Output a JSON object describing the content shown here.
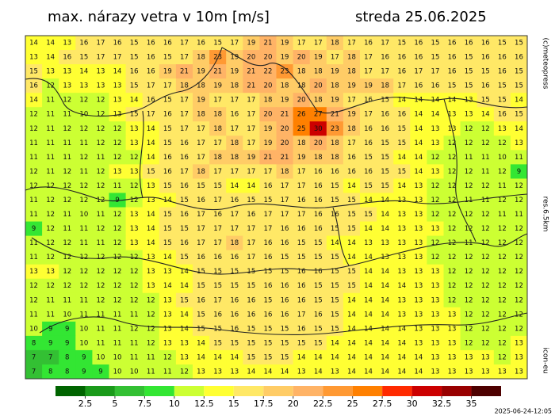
{
  "header": {
    "title": "max. nárazy vetra v 10m [m/s]",
    "date": "streda 25.06.2025"
  },
  "side_labels": {
    "copyright": "(c)meteopress",
    "resolution": "res.6.5km",
    "model": "icon-eu"
  },
  "timestamp": "2025-06-24-12:05",
  "colorbar": {
    "range": [
      0,
      37.5
    ],
    "ticks": [
      2.5,
      5,
      7.5,
      10,
      12.5,
      15,
      17.5,
      20,
      22.5,
      25,
      27.5,
      30,
      32.5,
      35
    ],
    "colors": [
      "#006400",
      "#1a9a1a",
      "#33c033",
      "#33e633",
      "#ccff33",
      "#ffff33",
      "#ffe866",
      "#ffcc66",
      "#ffb366",
      "#ff9933",
      "#ff8000",
      "#ff2a00",
      "#cc0000",
      "#990000",
      "#4d0000"
    ]
  },
  "grid": {
    "values": [
      [
        14,
        14,
        13,
        16,
        17,
        16,
        15,
        16,
        16,
        17,
        16,
        15,
        17,
        19,
        21,
        19,
        17,
        17,
        18,
        17,
        16,
        17,
        15,
        16,
        15,
        16,
        16,
        16,
        15,
        15
      ],
      [
        13,
        14,
        16,
        15,
        17,
        17,
        15,
        16,
        15,
        17,
        18,
        23,
        19,
        20,
        20,
        19,
        20,
        19,
        17,
        18,
        17,
        16,
        16,
        16,
        15,
        16,
        15,
        16,
        16,
        16
      ],
      [
        15,
        13,
        13,
        14,
        13,
        14,
        16,
        16,
        19,
        21,
        19,
        21,
        19,
        21,
        22,
        23,
        18,
        18,
        19,
        18,
        17,
        17,
        16,
        17,
        17,
        16,
        15,
        15,
        16,
        15
      ],
      [
        16,
        12,
        13,
        13,
        13,
        13,
        15,
        17,
        17,
        18,
        18,
        19,
        18,
        21,
        20,
        18,
        18,
        20,
        18,
        19,
        19,
        18,
        17,
        16,
        16,
        15,
        15,
        16,
        15,
        15
      ],
      [
        14,
        11,
        12,
        12,
        12,
        13,
        14,
        16,
        15,
        17,
        19,
        17,
        17,
        17,
        18,
        19,
        20,
        18,
        19,
        17,
        16,
        15,
        14,
        14,
        14,
        14,
        13,
        15,
        15,
        14
      ],
      [
        12,
        11,
        11,
        10,
        12,
        13,
        15,
        17,
        16,
        17,
        18,
        18,
        16,
        17,
        20,
        21,
        26,
        27,
        21,
        19,
        17,
        16,
        16,
        14,
        14,
        13,
        13,
        14,
        16,
        15
      ],
      [
        12,
        11,
        12,
        12,
        12,
        12,
        13,
        14,
        15,
        17,
        17,
        18,
        17,
        17,
        19,
        20,
        25,
        30,
        23,
        18,
        16,
        16,
        15,
        14,
        13,
        13,
        12,
        12,
        13,
        14
      ],
      [
        11,
        11,
        11,
        11,
        12,
        12,
        13,
        14,
        15,
        16,
        17,
        17,
        18,
        17,
        19,
        20,
        18,
        20,
        18,
        17,
        16,
        15,
        15,
        14,
        13,
        12,
        12,
        12,
        12,
        13
      ],
      [
        11,
        11,
        11,
        12,
        11,
        12,
        12,
        14,
        16,
        16,
        17,
        18,
        18,
        19,
        21,
        21,
        19,
        18,
        18,
        16,
        15,
        15,
        14,
        14,
        12,
        12,
        11,
        11,
        10,
        11
      ],
      [
        12,
        11,
        12,
        11,
        12,
        13,
        13,
        15,
        16,
        17,
        18,
        17,
        17,
        17,
        17,
        18,
        17,
        16,
        16,
        16,
        16,
        15,
        15,
        14,
        13,
        12,
        12,
        11,
        12,
        9
      ],
      [
        12,
        12,
        12,
        12,
        12,
        11,
        12,
        13,
        15,
        16,
        15,
        15,
        14,
        14,
        16,
        17,
        17,
        16,
        15,
        14,
        15,
        15,
        14,
        13,
        12,
        12,
        12,
        12,
        11,
        12
      ],
      [
        11,
        12,
        12,
        12,
        12,
        9,
        12,
        13,
        14,
        15,
        16,
        17,
        16,
        15,
        15,
        17,
        16,
        16,
        15,
        15,
        14,
        14,
        13,
        13,
        12,
        12,
        11,
        11,
        12,
        12
      ],
      [
        11,
        12,
        11,
        10,
        11,
        12,
        13,
        14,
        15,
        16,
        17,
        16,
        17,
        16,
        17,
        17,
        17,
        16,
        16,
        15,
        15,
        14,
        13,
        13,
        12,
        12,
        12,
        12,
        11,
        11
      ],
      [
        9,
        12,
        11,
        11,
        12,
        12,
        13,
        14,
        15,
        15,
        17,
        17,
        17,
        17,
        17,
        16,
        16,
        16,
        15,
        15,
        14,
        14,
        13,
        13,
        13,
        12,
        12,
        12,
        12,
        12
      ],
      [
        11,
        12,
        12,
        11,
        11,
        12,
        13,
        14,
        15,
        16,
        17,
        17,
        18,
        17,
        16,
        16,
        15,
        15,
        14,
        14,
        13,
        13,
        13,
        13,
        12,
        12,
        11,
        12,
        12,
        12
      ],
      [
        11,
        12,
        12,
        12,
        12,
        12,
        12,
        13,
        14,
        15,
        16,
        16,
        16,
        17,
        16,
        15,
        15,
        15,
        15,
        14,
        14,
        13,
        13,
        13,
        12,
        12,
        12,
        12,
        12,
        12
      ],
      [
        13,
        13,
        12,
        12,
        12,
        12,
        12,
        13,
        13,
        14,
        15,
        15,
        15,
        15,
        15,
        15,
        16,
        16,
        15,
        15,
        14,
        14,
        13,
        13,
        13,
        12,
        12,
        12,
        12,
        12
      ],
      [
        12,
        12,
        12,
        12,
        12,
        12,
        12,
        13,
        14,
        14,
        15,
        15,
        15,
        15,
        16,
        16,
        16,
        15,
        15,
        15,
        14,
        14,
        14,
        13,
        13,
        12,
        12,
        12,
        12,
        12
      ],
      [
        12,
        11,
        11,
        11,
        12,
        12,
        12,
        12,
        13,
        15,
        16,
        17,
        16,
        16,
        15,
        16,
        16,
        15,
        15,
        14,
        14,
        14,
        13,
        13,
        13,
        12,
        12,
        12,
        12,
        12
      ],
      [
        11,
        11,
        10,
        11,
        11,
        11,
        11,
        12,
        13,
        14,
        15,
        16,
        16,
        16,
        16,
        16,
        17,
        16,
        15,
        14,
        14,
        14,
        13,
        13,
        13,
        13,
        12,
        12,
        12,
        12
      ],
      [
        10,
        9,
        9,
        10,
        11,
        11,
        12,
        12,
        13,
        14,
        15,
        15,
        16,
        15,
        15,
        15,
        16,
        15,
        15,
        14,
        14,
        14,
        14,
        13,
        13,
        13,
        12,
        12,
        12,
        12
      ],
      [
        8,
        9,
        9,
        10,
        11,
        11,
        11,
        12,
        13,
        13,
        14,
        15,
        15,
        15,
        15,
        15,
        15,
        15,
        14,
        14,
        14,
        14,
        14,
        13,
        13,
        13,
        12,
        12,
        12,
        13
      ],
      [
        7,
        7,
        8,
        9,
        10,
        10,
        11,
        11,
        12,
        13,
        14,
        14,
        14,
        15,
        15,
        15,
        14,
        14,
        14,
        14,
        14,
        14,
        14,
        14,
        13,
        13,
        13,
        13,
        12,
        13
      ],
      [
        7,
        8,
        8,
        9,
        9,
        10,
        10,
        11,
        11,
        12,
        13,
        13,
        13,
        14,
        14,
        14,
        13,
        14,
        13,
        14,
        14,
        14,
        14,
        14,
        13,
        13,
        13,
        13,
        13,
        13
      ]
    ]
  }
}
